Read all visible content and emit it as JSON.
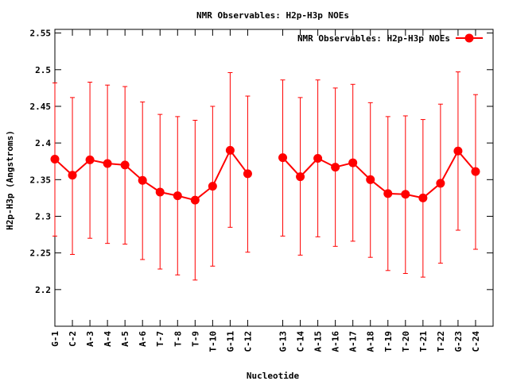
{
  "chart_data": {
    "type": "line",
    "title": "NMR Observables: H2p-H3p NOEs",
    "xlabel": "Nucleotide",
    "ylabel": "H2p-H3p (Angstroms)",
    "ylim": [
      2.15,
      2.555
    ],
    "yticks": [
      "2.2",
      "2.25",
      "2.3",
      "2.35",
      "2.4",
      "2.45",
      "2.5",
      "2.55"
    ],
    "ytick_values": [
      2.2,
      2.25,
      2.3,
      2.35,
      2.4,
      2.45,
      2.5,
      2.55
    ],
    "x_index_range": [
      0,
      25
    ],
    "legend_position": "top-right",
    "grid": false,
    "series": [
      {
        "name": "NMR Observables: H2p-H3p NOEs",
        "color": "#ff0000",
        "segments": [
          {
            "x_index": [
              0,
              1,
              2,
              3,
              4,
              5,
              6,
              7,
              8,
              9,
              10,
              11
            ],
            "labels": [
              "G-1",
              "C-2",
              "A-3",
              "A-4",
              "A-5",
              "A-6",
              "T-7",
              "T-8",
              "T-9",
              "T-10",
              "G-11",
              "C-12"
            ],
            "values": [
              2.378,
              2.356,
              2.377,
              2.372,
              2.37,
              2.349,
              2.333,
              2.328,
              2.322,
              2.341,
              2.39,
              2.358
            ],
            "err_low": [
              2.273,
              2.248,
              2.27,
              2.263,
              2.262,
              2.241,
              2.228,
              2.22,
              2.213,
              2.232,
              2.285,
              2.251
            ],
            "err_high": [
              2.482,
              2.462,
              2.483,
              2.479,
              2.477,
              2.456,
              2.439,
              2.436,
              2.431,
              2.45,
              2.496,
              2.464
            ]
          },
          {
            "x_index": [
              13,
              14,
              15,
              16,
              17,
              18,
              19,
              20,
              21,
              22,
              23,
              24
            ],
            "labels": [
              "G-13",
              "C-14",
              "A-15",
              "A-16",
              "A-17",
              "A-18",
              "T-19",
              "T-20",
              "T-21",
              "T-22",
              "G-23",
              "C-24"
            ],
            "values": [
              2.38,
              2.354,
              2.379,
              2.367,
              2.373,
              2.35,
              2.331,
              2.33,
              2.325,
              2.345,
              2.389,
              2.361
            ],
            "err_low": [
              2.273,
              2.247,
              2.272,
              2.259,
              2.266,
              2.244,
              2.226,
              2.222,
              2.217,
              2.236,
              2.281,
              2.255
            ],
            "err_high": [
              2.486,
              2.462,
              2.486,
              2.475,
              2.48,
              2.455,
              2.436,
              2.437,
              2.432,
              2.453,
              2.497,
              2.466
            ]
          }
        ]
      }
    ]
  }
}
